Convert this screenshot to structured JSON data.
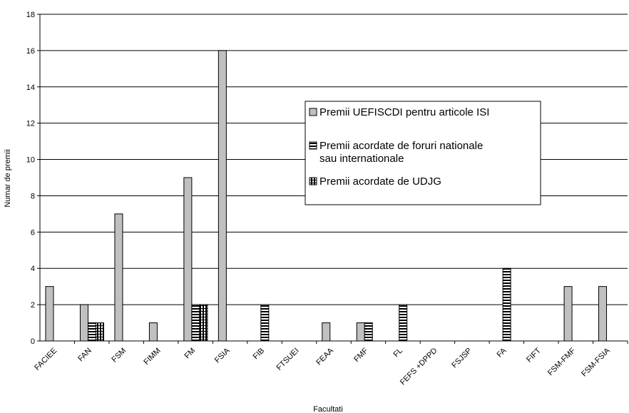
{
  "chart_data": {
    "type": "bar",
    "title": "",
    "xlabel": "Facultati",
    "ylabel": "Numar de premii",
    "ylim": [
      0,
      18
    ],
    "yticks": [
      0,
      2,
      4,
      6,
      8,
      10,
      12,
      14,
      16,
      18
    ],
    "grid": true,
    "legend_position": "right",
    "categories": [
      "FACIEE",
      "FAN",
      "FSM",
      "FIMM",
      "FM",
      "FSIA",
      "FIB",
      "FTSUEI",
      "FEAA",
      "FMF",
      "FL",
      "FEFS +DPPD",
      "FSJSP",
      "FA",
      "FIFT",
      "FSM-FMF",
      "FSM-FSIA"
    ],
    "series": [
      {
        "name": "Premii UEFISCDI pentru articole ISI",
        "pattern": "solid",
        "color": "#c0c0c0",
        "values": [
          3,
          2,
          7,
          1,
          9,
          16,
          0,
          0,
          1,
          1,
          0,
          0,
          0,
          0,
          0,
          3,
          3
        ]
      },
      {
        "name": "Premii acordate de foruri nationale sau internationale",
        "pattern": "horizontal-lines",
        "color": "#000000",
        "values": [
          0,
          1,
          0,
          0,
          2,
          0,
          2,
          0,
          0,
          1,
          2,
          0,
          0,
          4,
          0,
          0,
          0
        ]
      },
      {
        "name": "Premii acordate de UDJG",
        "pattern": "grid",
        "color": "#000000",
        "values": [
          0,
          1,
          0,
          0,
          2,
          0,
          0,
          0,
          0,
          0,
          0,
          0,
          0,
          0,
          0,
          0,
          0
        ]
      }
    ]
  }
}
